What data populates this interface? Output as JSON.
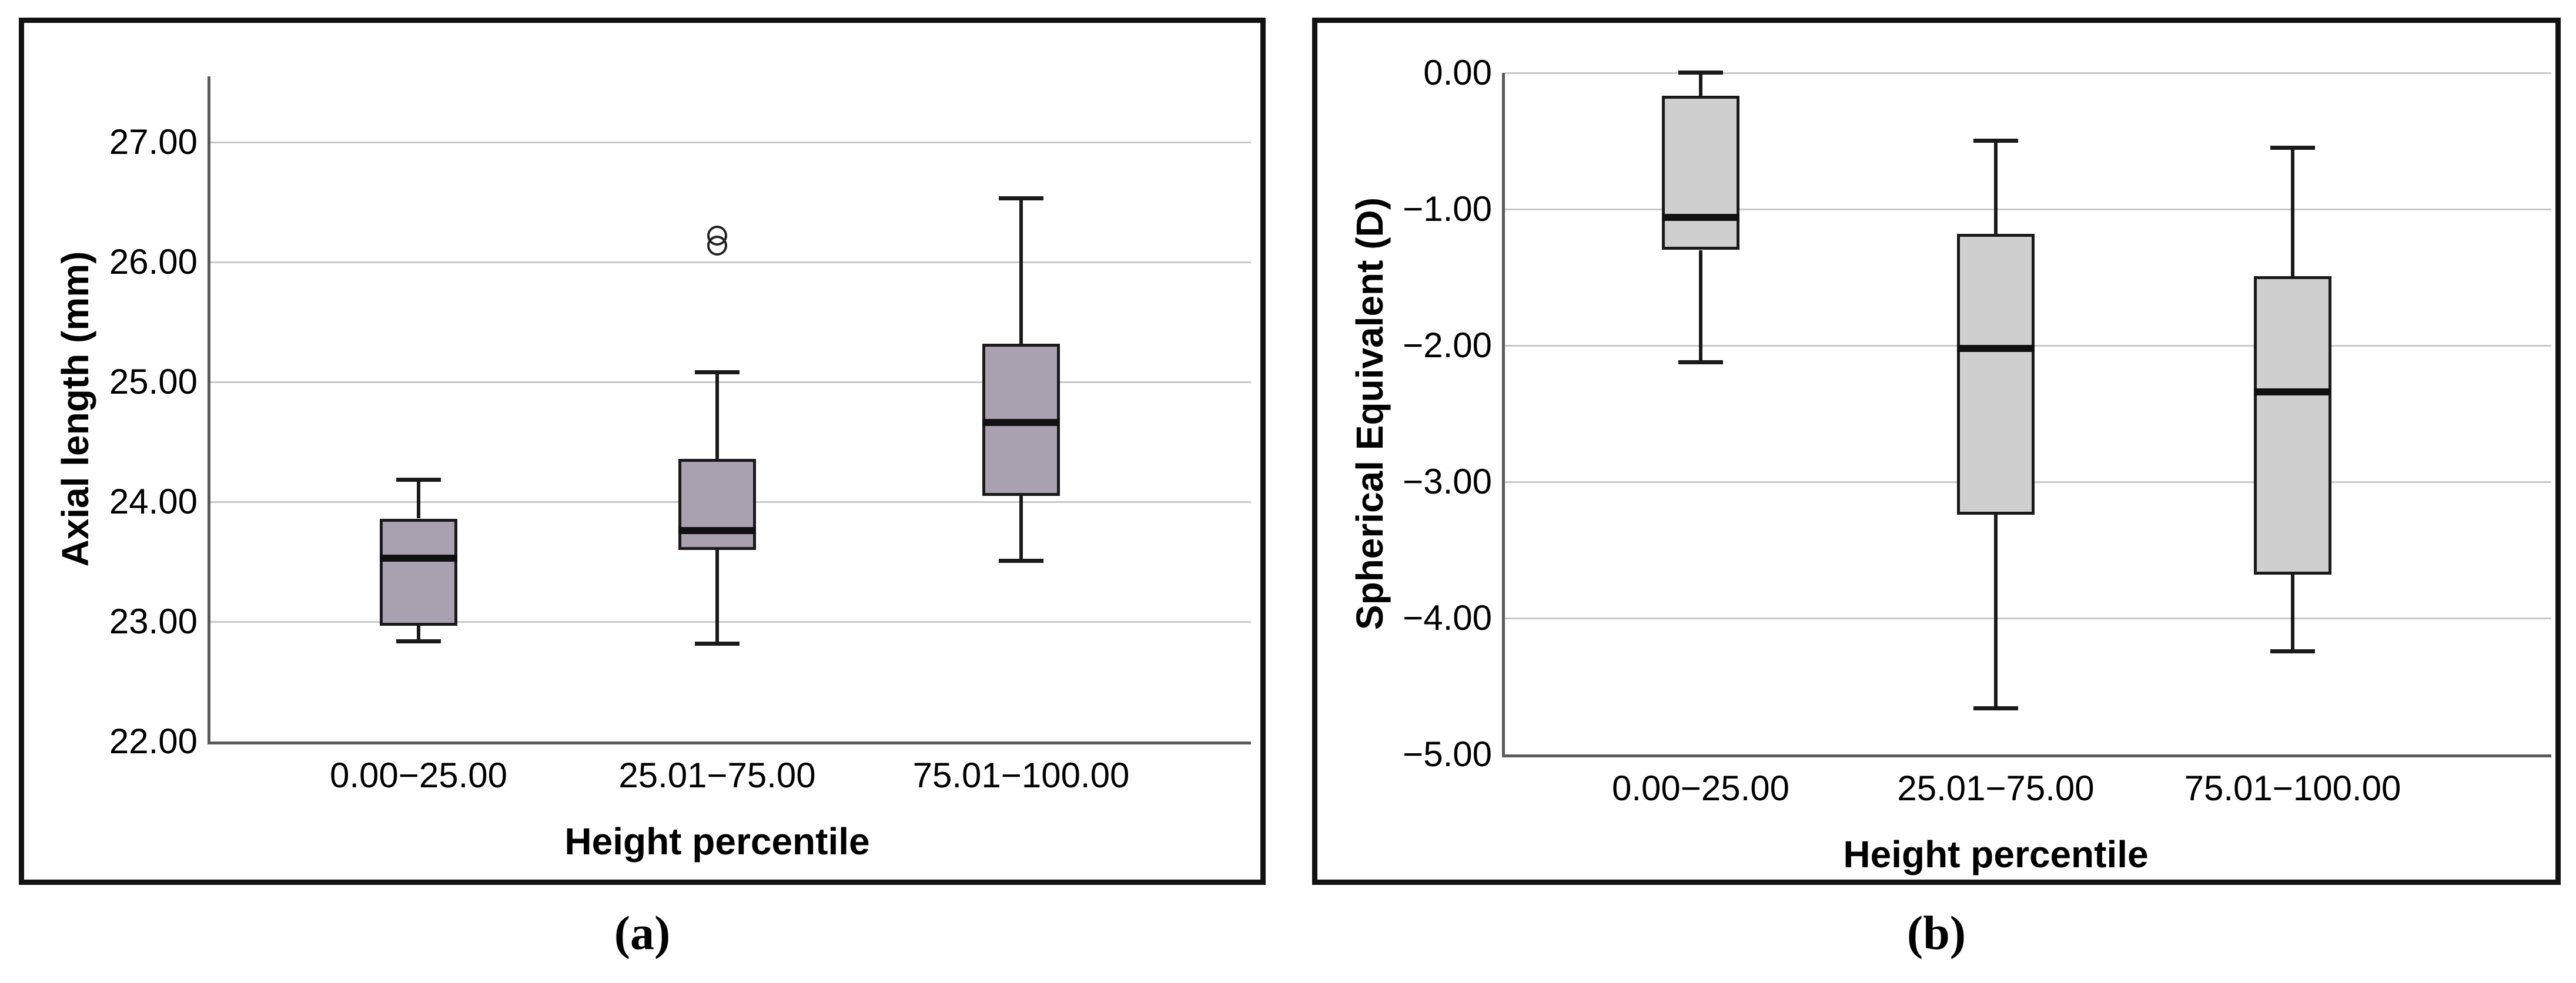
{
  "captions": {
    "a": "(a)",
    "b": "(b)"
  },
  "colors": {
    "panel_border": "#121212",
    "gridline": "#c8c8c8",
    "spine": "#5a5a5a",
    "box_border": "#1a1a1a",
    "median": "#111111",
    "outlier_stroke": "#222222",
    "box_fill_a": "#a9a0b0",
    "box_fill_b": "#cfcfcf",
    "text": "#000000"
  },
  "chart_data": [
    {
      "type": "box",
      "panel": "a",
      "title": "",
      "xlabel": "Height percentile",
      "ylabel": "Axial length (mm)",
      "ylim": [
        22.0,
        27.55
      ],
      "grid": true,
      "grid_values": [
        27,
        26,
        25,
        24,
        23
      ],
      "yticks": [
        27,
        26,
        25,
        24,
        23,
        22
      ],
      "ytick_labels": [
        "27.00",
        "26.00",
        "25.00",
        "24.00",
        "23.00",
        "22.00"
      ],
      "categories": [
        "0.00−25.00",
        "25.01−75.00",
        "75.01−100.00"
      ],
      "box_fill": "#a9a0b0",
      "series": [
        {
          "category": "0.00−25.00",
          "whisker_low": 22.84,
          "q1": 22.97,
          "median": 23.53,
          "q3": 23.86,
          "whisker_high": 24.18,
          "outliers": []
        },
        {
          "category": "25.01−75.00",
          "whisker_low": 22.82,
          "q1": 23.6,
          "median": 23.76,
          "q3": 24.36,
          "whisker_high": 25.08,
          "outliers": [
            26.14,
            26.22
          ]
        },
        {
          "category": "75.01−100.00",
          "whisker_low": 23.51,
          "q1": 24.05,
          "median": 24.66,
          "q3": 25.32,
          "whisker_high": 26.53,
          "outliers": []
        }
      ]
    },
    {
      "type": "box",
      "panel": "b",
      "title": "",
      "xlabel": "Height percentile",
      "ylabel": "Spherical Equivalent (D)",
      "ylim": [
        -5.0,
        0.0
      ],
      "grid": true,
      "grid_values": [
        0,
        -1,
        -2,
        -3,
        -4
      ],
      "yticks": [
        0,
        -1,
        -2,
        -3,
        -4,
        -5
      ],
      "ytick_labels": [
        "0.00",
        "−1.00",
        "−2.00",
        "−3.00",
        "−4.00",
        "−5.00"
      ],
      "categories": [
        "0.00−25.00",
        "25.01−75.00",
        "75.01−100.00"
      ],
      "box_fill": "#cfcfcf",
      "series": [
        {
          "category": "0.00−25.00",
          "whisker_low": -2.12,
          "q1": -1.3,
          "median": -1.06,
          "q3": -0.17,
          "whisker_high": 0.0,
          "outliers": []
        },
        {
          "category": "25.01−75.00",
          "whisker_low": -4.66,
          "q1": -3.24,
          "median": -2.02,
          "q3": -1.18,
          "whisker_high": -0.5,
          "outliers": []
        },
        {
          "category": "75.01−100.00",
          "whisker_low": -4.24,
          "q1": -3.68,
          "median": -2.34,
          "q3": -1.49,
          "whisker_high": -0.55,
          "outliers": []
        }
      ]
    }
  ]
}
